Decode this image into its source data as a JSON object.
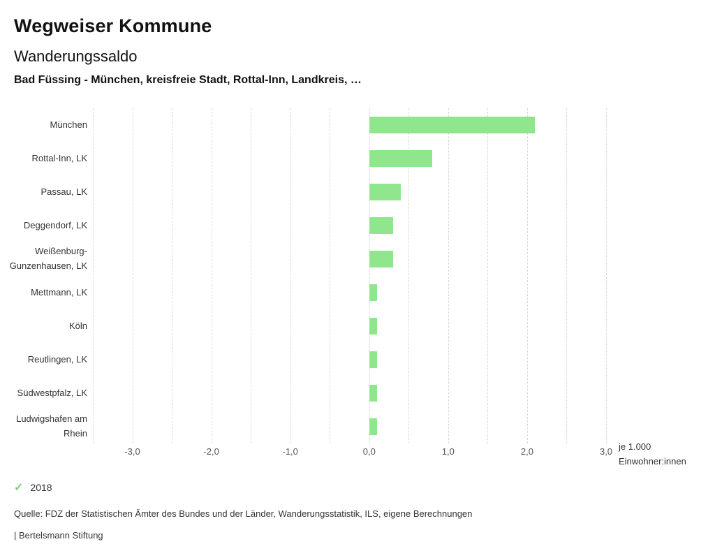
{
  "header": {
    "title": "Wegweiser Kommune",
    "subtitle": "Wanderungssaldo",
    "selection": "Bad Füssing - München, kreisfreie Stadt, Rottal-Inn, Landkreis, …"
  },
  "chart_data": {
    "type": "bar",
    "orientation": "horizontal",
    "title": "Wanderungssaldo",
    "subtitle": "Bad Füssing - München, kreisfreie Stadt, Rottal-Inn, Landkreis, …",
    "categories": [
      "München",
      "Rottal-Inn, LK",
      "Passau, LK",
      "Deggendorf, LK",
      "Weißenburg-Gunzenhausen, LK",
      "Mettmann, LK",
      "Köln",
      "Reutlingen, LK",
      "Südwestpfalz, LK",
      "Ludwigshafen am Rhein"
    ],
    "series": [
      {
        "name": "2018",
        "color": "#90e68d",
        "values": [
          2.1,
          0.8,
          0.4,
          0.3,
          0.3,
          0.1,
          0.1,
          0.1,
          0.1,
          0.1
        ]
      }
    ],
    "xlim": [
      -3.5,
      3.0
    ],
    "grid_step": 0.5,
    "grid": true,
    "x_ticks": [
      -3,
      -2,
      -1,
      0,
      1,
      2,
      3
    ],
    "x_tick_labels": [
      "-3,0",
      "-2,0",
      "-1,0",
      "0,0",
      "1,0",
      "2,0",
      "3,0"
    ],
    "xlabel": "je 1.000 Einwohner:innen",
    "unit_label_line1": "je 1.000",
    "unit_label_line2": "Einwohner:innen",
    "legend_position": "bottom-left"
  },
  "legend": {
    "year": "2018",
    "check_icon": "check",
    "check_color": "#7fce7f"
  },
  "footer": {
    "source": "Quelle: FDZ der Statistischen Ämter des Bundes und der Länder, Wanderungsstatistik, ILS, eigene Berechnungen",
    "brand": "| Bertelsmann Stiftung"
  }
}
